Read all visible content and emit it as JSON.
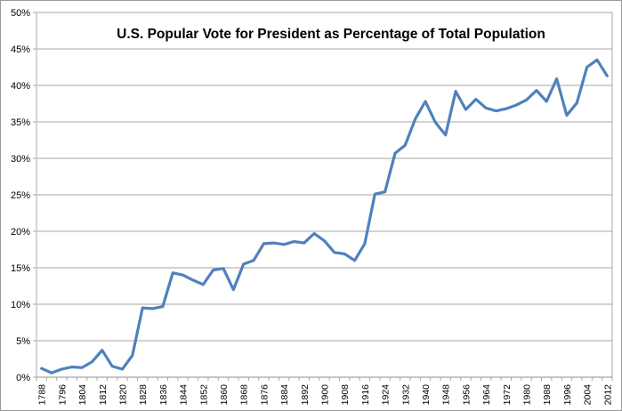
{
  "chart_data": {
    "type": "line",
    "title": "U.S. Popular Vote for President as Percentage of Total Population",
    "x": [
      1788,
      1792,
      1796,
      1800,
      1804,
      1808,
      1812,
      1816,
      1820,
      1824,
      1828,
      1832,
      1836,
      1840,
      1844,
      1848,
      1852,
      1856,
      1860,
      1864,
      1868,
      1872,
      1876,
      1880,
      1884,
      1888,
      1892,
      1896,
      1900,
      1904,
      1908,
      1912,
      1916,
      1920,
      1924,
      1928,
      1932,
      1936,
      1940,
      1944,
      1948,
      1952,
      1956,
      1960,
      1964,
      1968,
      1972,
      1976,
      1980,
      1984,
      1988,
      1992,
      1996,
      2000,
      2004,
      2008,
      2012
    ],
    "series": [
      {
        "name": "Popular vote for President as percentage of total population",
        "values": [
          1.2,
          0.6,
          1.1,
          1.4,
          1.3,
          2.1,
          3.7,
          1.5,
          1.1,
          3.0,
          9.5,
          9.4,
          9.7,
          14.3,
          14.0,
          13.3,
          12.7,
          14.7,
          14.9,
          12.0,
          15.5,
          16.0,
          18.3,
          18.4,
          18.2,
          18.6,
          18.4,
          19.7,
          18.7,
          17.1,
          16.9,
          16.0,
          18.3,
          25.1,
          25.4,
          30.7,
          31.8,
          35.4,
          37.8,
          34.9,
          33.2,
          39.2,
          36.7,
          38.1,
          36.9,
          36.5,
          36.8,
          37.3,
          38.0,
          39.3,
          37.8,
          40.9,
          35.9,
          37.6,
          42.5,
          43.5,
          41.3
        ]
      }
    ],
    "x_tick_labels": [
      "1788",
      "1796",
      "1804",
      "1812",
      "1820",
      "1828",
      "1836",
      "1844",
      "1852",
      "1860",
      "1868",
      "1876",
      "1884",
      "1892",
      "1900",
      "1908",
      "1916",
      "1924",
      "1932",
      "1940",
      "1948",
      "1956",
      "1964",
      "1972",
      "1980",
      "1988",
      "1996",
      "2004",
      "2012"
    ],
    "x_label_interval_years": 8,
    "y_ticks": [
      0,
      5,
      10,
      15,
      20,
      25,
      30,
      35,
      40,
      45,
      50
    ],
    "y_tick_labels": [
      "0%",
      "5%",
      "10%",
      "15%",
      "20%",
      "25%",
      "30%",
      "35%",
      "40%",
      "45%",
      "50%"
    ],
    "ylim": [
      0,
      50
    ],
    "grid": "horizontal",
    "legend": "none",
    "xlabel": "",
    "ylabel": "",
    "colors": {
      "line": "#4F81BD",
      "gridline": "#A6A6A6",
      "value_axis_line": "#C9C9C9",
      "category_axis_line": "#8C8C8C",
      "tick": "#A6A6A6",
      "text": "#000000",
      "background": "#FFFFFF"
    }
  }
}
